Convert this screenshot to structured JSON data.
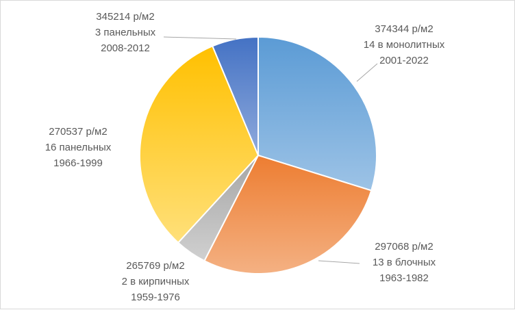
{
  "chart_data": {
    "type": "pie",
    "title": "",
    "legend": "none",
    "slices": [
      {
        "name": "14 в монолитных",
        "value": 29.8,
        "price": "374344 р/м2",
        "period": "2001-2022",
        "color_start": "#5b9bd5",
        "color_end": "#9dc3e6",
        "label_lines": [
          "374344 р/м2",
          "14 в монолитных",
          "2001-2022"
        ]
      },
      {
        "name": "13 в блочных",
        "value": 27.7,
        "price": "297068 р/м2",
        "period": "1963-1982",
        "color_start": "#ed7d31",
        "color_end": "#f4b183",
        "label_lines": [
          "297068 р/м2",
          "13 в блочных",
          "1963-1982"
        ]
      },
      {
        "name": "2 в кирпичных",
        "value": 4.3,
        "price": "265769 р/м2",
        "period": "1959-1976",
        "color_start": "#a5a5a5",
        "color_end": "#d0d0d0",
        "label_lines": [
          "265769 р/м2",
          "2 в кирпичных",
          "1959-1976"
        ]
      },
      {
        "name": "16 панельных",
        "value": 31.9,
        "price": "270537 р/м2",
        "period": "1966-1999",
        "color_start": "#ffc000",
        "color_end": "#ffe07a",
        "label_lines": [
          "270537 р/м2",
          "16 панельных",
          "1966-1999"
        ]
      },
      {
        "name": "3 панельных",
        "value": 6.3,
        "price": "345214 р/м2",
        "period": "2008-2012",
        "color_start": "#4472c4",
        "color_end": "#8faadc",
        "label_lines": [
          "345214 р/м2",
          "3 панельных",
          "2008-2012"
        ]
      }
    ]
  }
}
